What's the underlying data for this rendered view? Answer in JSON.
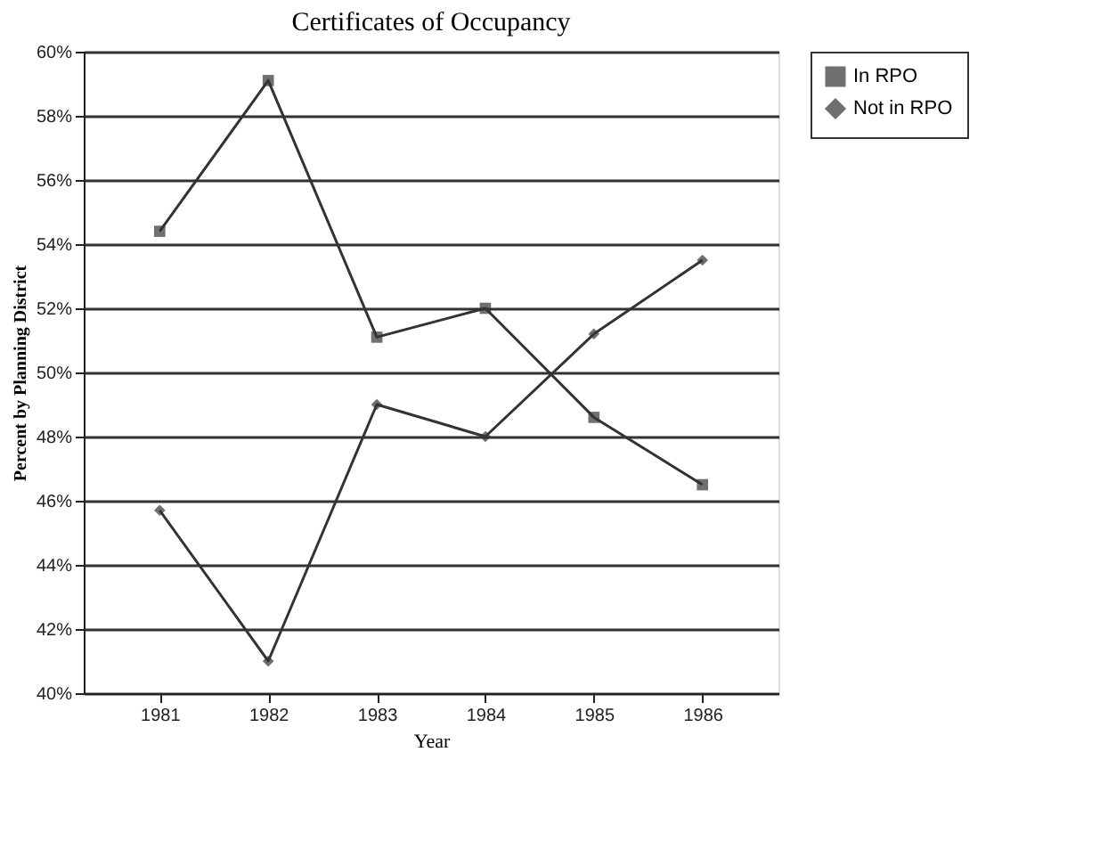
{
  "chart_data": {
    "type": "line",
    "title": "Certificates of Occupancy",
    "xlabel": "Year",
    "ylabel": "Percent by Planning District",
    "categories": [
      "1981",
      "1982",
      "1983",
      "1984",
      "1985",
      "1986"
    ],
    "series": [
      {
        "name": "In RPO",
        "color": "#333333",
        "marker": "square",
        "values": [
          54.4,
          59.1,
          51.1,
          52.0,
          48.6,
          46.5
        ]
      },
      {
        "name": "Not in RPO",
        "color": "#333333",
        "marker": "diamond",
        "values": [
          45.7,
          41.0,
          49.0,
          48.0,
          51.2,
          53.5
        ]
      }
    ],
    "ylim": [
      40,
      60
    ],
    "yticks": [
      {
        "value": 40,
        "label": "40%"
      },
      {
        "value": 42,
        "label": "42%"
      },
      {
        "value": 44,
        "label": "44%"
      },
      {
        "value": 46,
        "label": "46%"
      },
      {
        "value": 48,
        "label": "48%"
      },
      {
        "value": 50,
        "label": "50%"
      },
      {
        "value": 52,
        "label": "52%"
      },
      {
        "value": 54,
        "label": "54%"
      },
      {
        "value": 56,
        "label": "56%"
      },
      {
        "value": 58,
        "label": "58%"
      },
      {
        "value": 60,
        "label": "60%"
      }
    ],
    "grid": "y",
    "legend": "top right",
    "line_style": "solid"
  }
}
